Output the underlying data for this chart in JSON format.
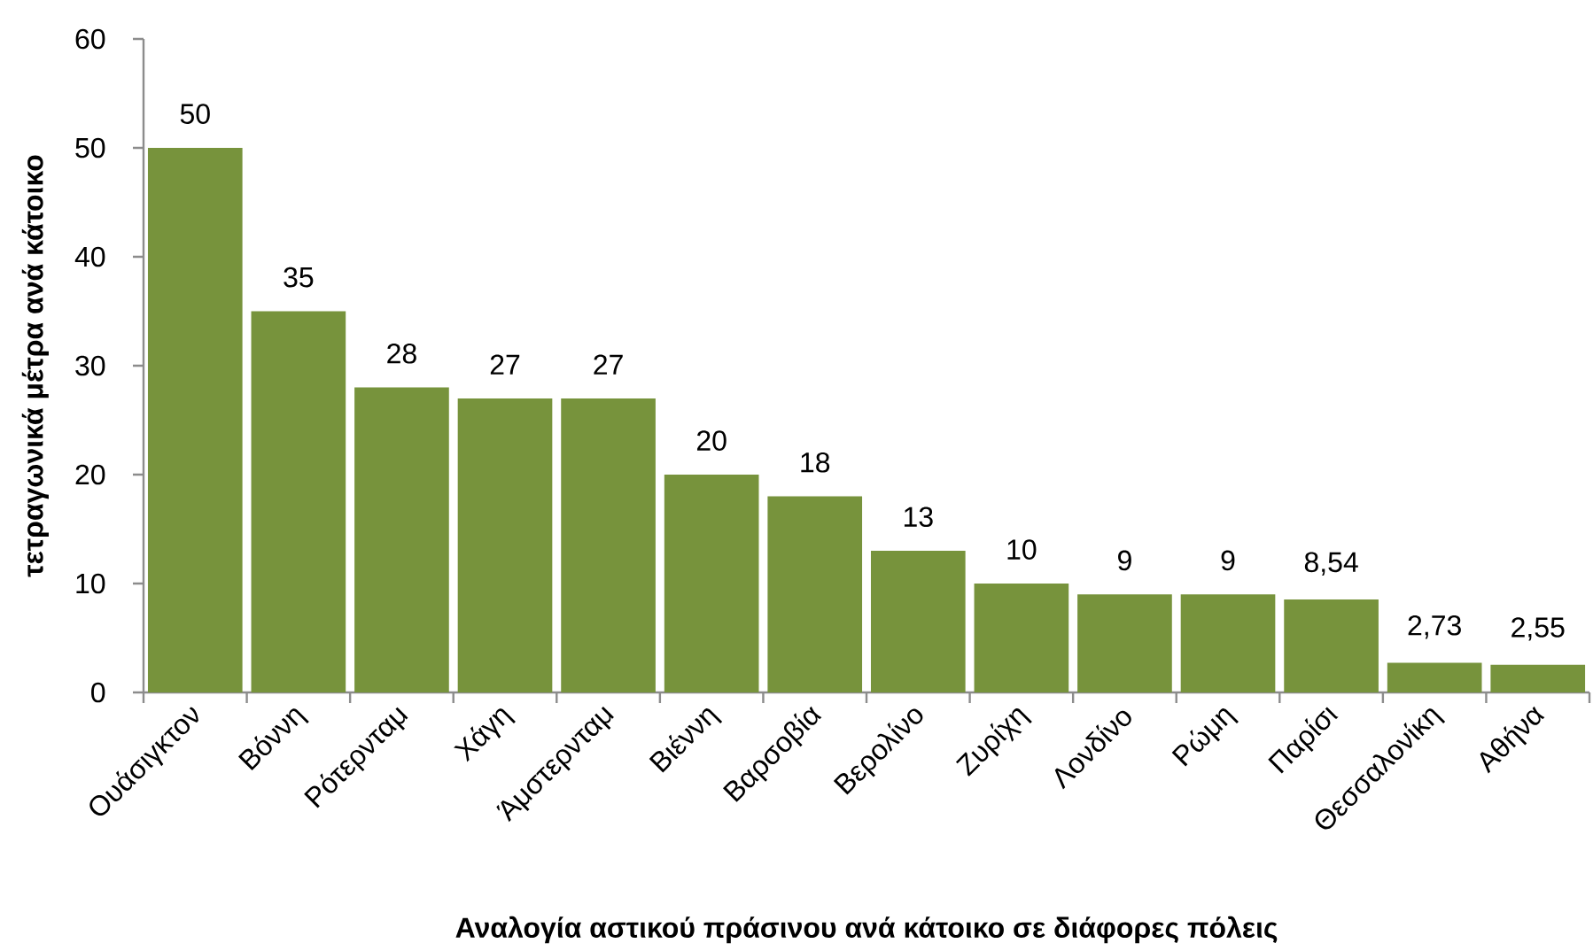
{
  "chart_data": {
    "type": "bar",
    "xlabel": "Αναλογία αστικού πράσινου ανά κάτοικο σε διάφορες πόλεις",
    "ylabel": "τετραγωνικά μέτρα ανά κάτοικο",
    "categories": [
      "Ουάσιγκτον",
      "Βόννη",
      "Ρότερνταμ",
      "Χάγη",
      "Άμστερνταμ",
      "Βιέννη",
      "Βαρσοβία",
      "Βερολίνο",
      "Ζυρίχη",
      "Λονδίνο",
      "Ρώμη",
      "Παρίσι",
      "Θεσσαλονίκη",
      "Αθήνα"
    ],
    "values": [
      50,
      35,
      28,
      27,
      27,
      20,
      18,
      13,
      10,
      9,
      9,
      8.54,
      2.73,
      2.55
    ],
    "value_labels": [
      "50",
      "35",
      "28",
      "27",
      "27",
      "20",
      "18",
      "13",
      "10",
      "9",
      "9",
      "8,54",
      "2,73",
      "2,55"
    ],
    "color": "#77933c",
    "ylim": [
      0,
      60
    ],
    "yticks": [
      0,
      10,
      20,
      30,
      40,
      50,
      60
    ]
  }
}
